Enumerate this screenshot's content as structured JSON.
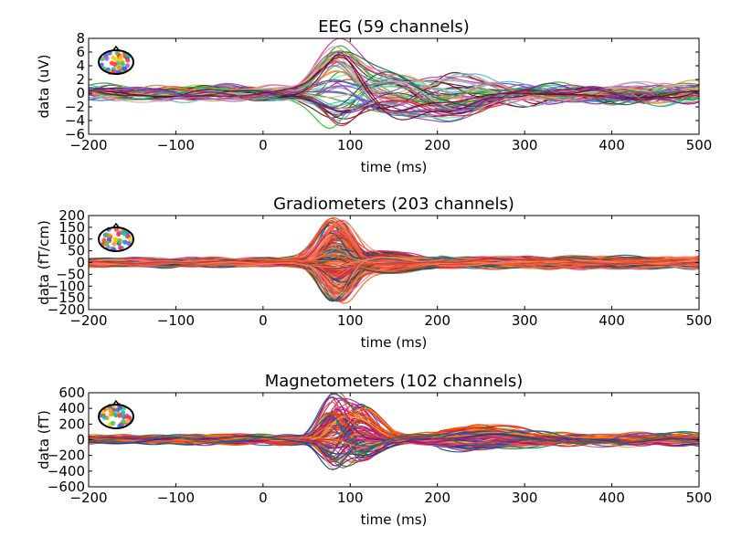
{
  "chart_data": [
    {
      "type": "line",
      "title": "EEG (59 channels)",
      "xlabel": "time (ms)",
      "ylabel": "data (uV)",
      "xlim": [
        -200,
        500
      ],
      "ylim": [
        -6,
        8
      ],
      "xticks": [
        -200,
        -100,
        0,
        100,
        200,
        300,
        400,
        500
      ],
      "xtick_labels": [
        "−200",
        "−100",
        "0",
        "100",
        "200",
        "300",
        "400",
        "500"
      ],
      "yticks": [
        -6,
        -4,
        -2,
        0,
        2,
        4,
        6,
        8
      ],
      "ytick_labels": [
        "−6",
        "−4",
        "−2",
        "0",
        "2",
        "4",
        "6",
        "8"
      ],
      "n_channels": 59,
      "grid": false,
      "legend": "none",
      "inset": "sensor topomap (top-left)",
      "palette": [
        "#d62728",
        "#8b0000",
        "#5b0a4d",
        "#6a1b9a",
        "#8e44ad",
        "#b03a9c",
        "#e066c9",
        "#1f77b4",
        "#5aa9e6",
        "#4fb3bf",
        "#2ca02c",
        "#17c41f",
        "#7fe07f",
        "#d4c27a",
        "#f28e2b",
        "#ff9896",
        "#9467bd",
        "#0b6b3a"
      ],
      "components": [
        {
          "peak_ms": 85,
          "width_ms": 30,
          "amplitude_range": [
            -5,
            7
          ]
        },
        {
          "peak_ms": 150,
          "width_ms": 40,
          "amplitude_range": [
            -3,
            3
          ]
        },
        {
          "peak_ms": 220,
          "width_ms": 50,
          "amplitude_range": [
            -4,
            2
          ]
        }
      ],
      "noise_level": 0.8
    },
    {
      "type": "line",
      "title": "Gradiometers (203 channels)",
      "xlabel": "time (ms)",
      "ylabel": "data (fT/cm)",
      "xlim": [
        -200,
        500
      ],
      "ylim": [
        -200,
        200
      ],
      "xticks": [
        -200,
        -100,
        0,
        100,
        200,
        300,
        400,
        500
      ],
      "xtick_labels": [
        "−200",
        "−100",
        "0",
        "100",
        "200",
        "300",
        "400",
        "500"
      ],
      "yticks": [
        -200,
        -150,
        -100,
        -50,
        0,
        50,
        100,
        150,
        200
      ],
      "ytick_labels": [
        "−200",
        "−150",
        "−100",
        "−50",
        "0",
        "50",
        "100",
        "150",
        "200"
      ],
      "n_channels": 203,
      "grid": false,
      "legend": "none",
      "inset": "sensor topomap (top-left)",
      "palette": [
        "#ff4500",
        "#ff6347",
        "#e8505b",
        "#f08080",
        "#d2691e",
        "#ff7f50",
        "#c0392b",
        "#0d5c63",
        "#1a7f8c",
        "#2f4f4f",
        "#1b4965",
        "#ff5722",
        "#e91e63",
        "#ff8c69"
      ],
      "components": [
        {
          "peak_ms": 85,
          "width_ms": 22,
          "amplitude_range": [
            -170,
            190
          ]
        },
        {
          "peak_ms": 140,
          "width_ms": 40,
          "amplitude_range": [
            -40,
            40
          ]
        }
      ],
      "noise_level": 12
    },
    {
      "type": "line",
      "title": "Magnetometers (102 channels)",
      "xlabel": "time (ms)",
      "ylabel": "data (fT)",
      "xlim": [
        -200,
        500
      ],
      "ylim": [
        -600,
        600
      ],
      "xticks": [
        -200,
        -100,
        0,
        100,
        200,
        300,
        400,
        500
      ],
      "xtick_labels": [
        "−200",
        "−100",
        "0",
        "100",
        "200",
        "300",
        "400",
        "500"
      ],
      "yticks": [
        -600,
        -400,
        -200,
        0,
        200,
        400,
        600
      ],
      "ytick_labels": [
        "−600",
        "−400",
        "−200",
        "0",
        "200",
        "400",
        "600"
      ],
      "n_channels": 102,
      "grid": false,
      "legend": "none",
      "inset": "sensor topomap (top-left)",
      "palette": [
        "#ff8c00",
        "#ff4500",
        "#e8505b",
        "#1f5fa8",
        "#0b3d91",
        "#1a7a4a",
        "#8e24aa",
        "#e91e63",
        "#ff9e3d",
        "#d84315",
        "#6a1b9a",
        "#c2185b"
      ],
      "components": [
        {
          "peak_ms": 82,
          "width_ms": 18,
          "amplitude_range": [
            -350,
            520
          ]
        },
        {
          "peak_ms": 110,
          "width_ms": 25,
          "amplitude_range": [
            -300,
            450
          ]
        },
        {
          "peak_ms": 250,
          "width_ms": 60,
          "amplitude_range": [
            -120,
            150
          ]
        }
      ],
      "noise_level": 40
    }
  ]
}
